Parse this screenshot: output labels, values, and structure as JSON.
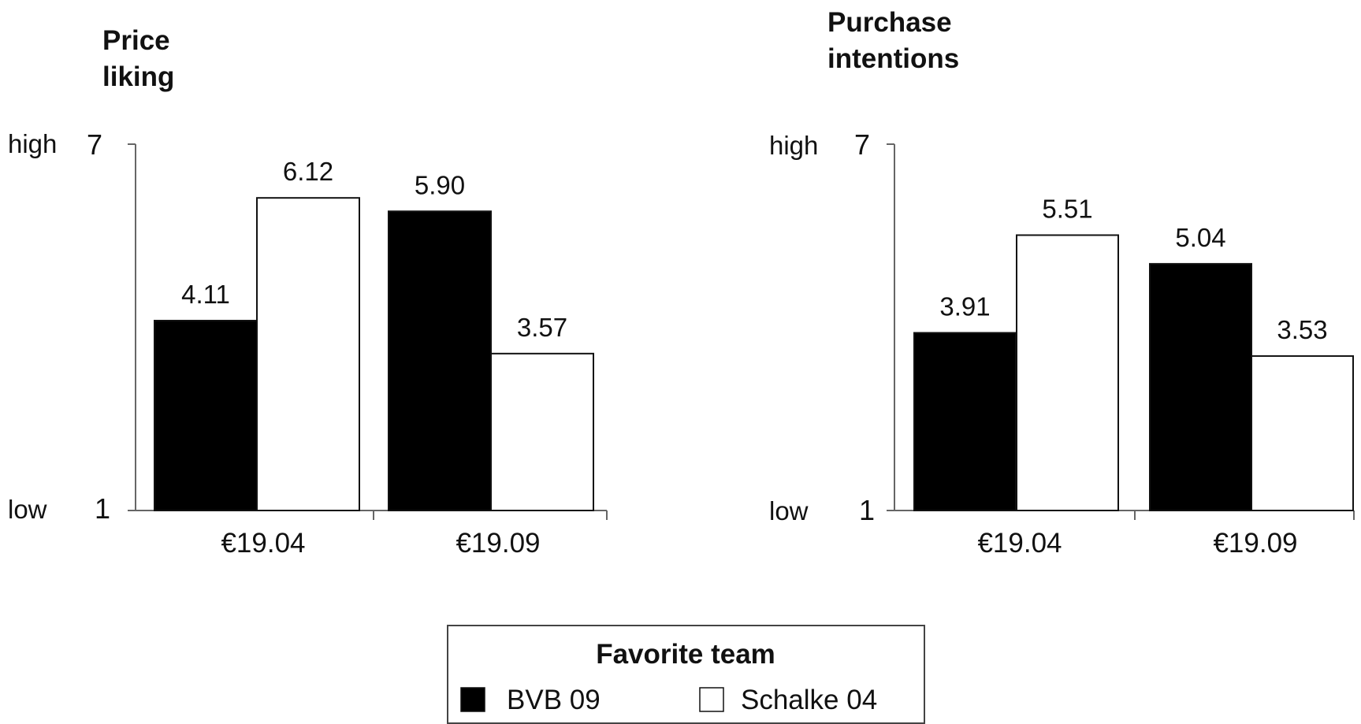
{
  "chart_data": [
    {
      "type": "bar",
      "title_lines": [
        "Price",
        "liking"
      ],
      "categories": [
        "€19.04",
        "€19.09"
      ],
      "series": [
        {
          "name": "BVB 09",
          "values": [
            4.11,
            5.9
          ],
          "labels": [
            "4.11",
            "5.90"
          ]
        },
        {
          "name": "Schalke 04",
          "values": [
            6.12,
            3.57
          ],
          "labels": [
            "6.12",
            "3.57"
          ]
        }
      ],
      "ylim": [
        1,
        7
      ],
      "yticks": [
        {
          "label": "7",
          "word": "high"
        },
        {
          "label": "1",
          "word": "low"
        }
      ],
      "grid": false
    },
    {
      "type": "bar",
      "title_lines": [
        "Purchase",
        "intentions"
      ],
      "categories": [
        "€19.04",
        "€19.09"
      ],
      "series": [
        {
          "name": "BVB 09",
          "values": [
            3.91,
            5.04
          ],
          "labels": [
            "3.91",
            "5.04"
          ]
        },
        {
          "name": "Schalke 04",
          "values": [
            5.51,
            3.53
          ],
          "labels": [
            "5.51",
            "3.53"
          ]
        }
      ],
      "ylim": [
        1,
        7
      ],
      "yticks": [
        {
          "label": "7",
          "word": "high"
        },
        {
          "label": "1",
          "word": "low"
        }
      ],
      "grid": false
    }
  ],
  "legend": {
    "title": "Favorite team",
    "items": [
      {
        "label": "BVB 09",
        "color": "#000000"
      },
      {
        "label": "Schalke 04",
        "color": "#ffffff"
      }
    ]
  },
  "colors": {
    "bvb": "#000000",
    "schalke": "#ffffff",
    "stroke": "#111111",
    "axis": "#666666"
  }
}
